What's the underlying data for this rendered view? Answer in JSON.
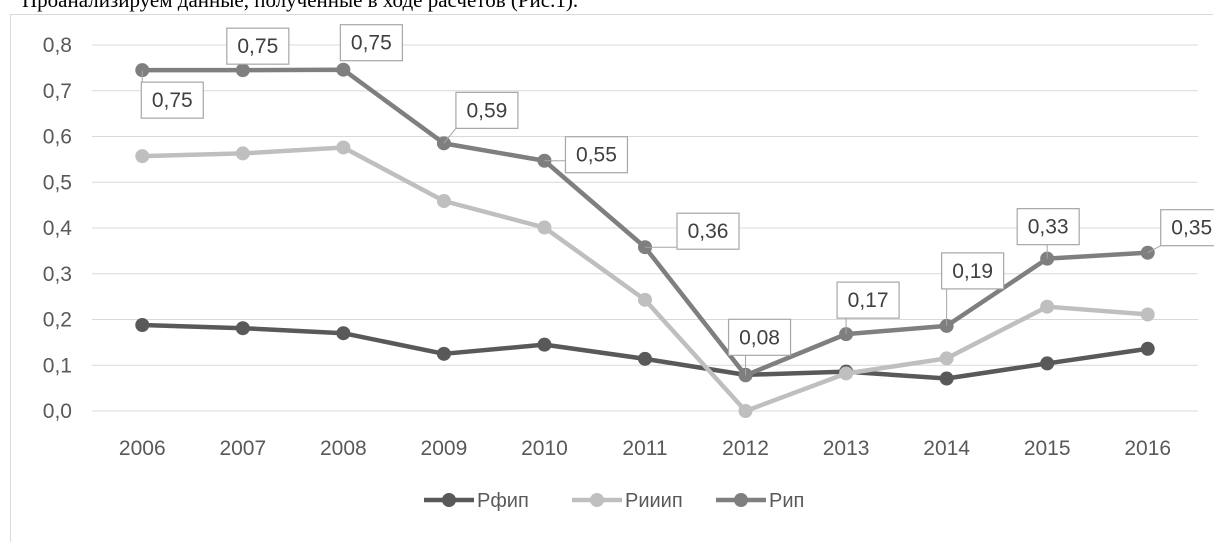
{
  "caption": "Проанализируем данные, полученные в ходе расчетов (Рис.1).",
  "chart_data": {
    "type": "line",
    "title": "",
    "xlabel": "",
    "ylabel": "",
    "ylim": [
      0,
      0.8
    ],
    "y_ticks": [
      "0,0",
      "0,1",
      "0,2",
      "0,3",
      "0,4",
      "0,5",
      "0,6",
      "0,7",
      "0,8"
    ],
    "categories": [
      "2006",
      "2007",
      "2008",
      "2009",
      "2010",
      "2011",
      "2012",
      "2013",
      "2014",
      "2015",
      "2016"
    ],
    "grid": true,
    "legend": "bottom",
    "series": [
      {
        "name": "Рфип",
        "color": "#595959",
        "values": [
          0.188,
          0.181,
          0.17,
          0.125,
          0.145,
          0.114,
          0.079,
          0.086,
          0.071,
          0.104,
          0.136
        ]
      },
      {
        "name": "Рииип",
        "color": "#bfbfbf",
        "values": [
          0.557,
          0.563,
          0.576,
          0.459,
          0.401,
          0.243,
          0.0,
          0.082,
          0.115,
          0.228,
          0.211
        ]
      },
      {
        "name": "Рип",
        "color": "#7f7f7f",
        "values": [
          0.745,
          0.745,
          0.746,
          0.585,
          0.547,
          0.358,
          0.078,
          0.168,
          0.186,
          0.333,
          0.346
        ]
      }
    ],
    "data_labels": [
      {
        "series": 2,
        "index": 0,
        "text": "0,75"
      },
      {
        "series": 2,
        "index": 1,
        "text": "0,75"
      },
      {
        "series": 2,
        "index": 2,
        "text": "0,75"
      },
      {
        "series": 2,
        "index": 3,
        "text": "0,59"
      },
      {
        "series": 2,
        "index": 4,
        "text": "0,55"
      },
      {
        "series": 2,
        "index": 5,
        "text": "0,36"
      },
      {
        "series": 2,
        "index": 6,
        "text": "0,08"
      },
      {
        "series": 2,
        "index": 7,
        "text": "0,17"
      },
      {
        "series": 2,
        "index": 8,
        "text": "0,19"
      },
      {
        "series": 2,
        "index": 9,
        "text": "0,33"
      },
      {
        "series": 2,
        "index": 10,
        "text": "0,35"
      }
    ]
  }
}
